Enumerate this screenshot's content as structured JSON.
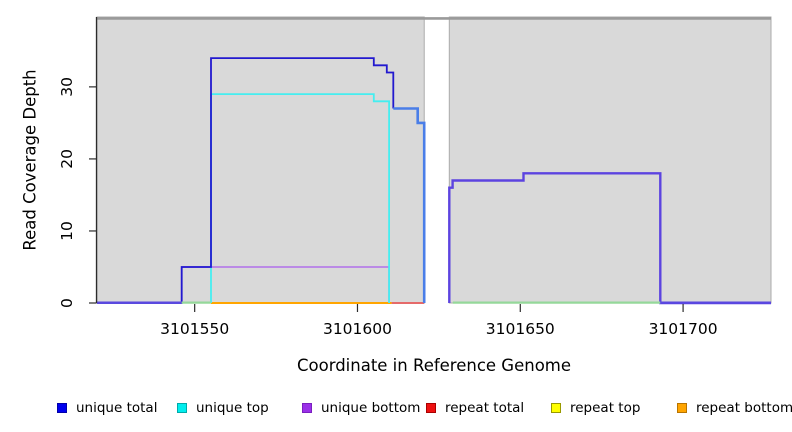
{
  "figure": {
    "xlabel": "Coordinate in Reference Genome",
    "ylabel": "Read Coverage Depth"
  },
  "chart_data": {
    "type": "line",
    "title": "",
    "xlabel": "Coordinate in Reference Genome",
    "ylabel": "Read Coverage Depth",
    "xlim": [
      3101520,
      3101727
    ],
    "ylim": [
      0,
      39.7
    ],
    "grid": false,
    "legend_position": "bottom",
    "x_ticks": [
      {
        "value": 3101550,
        "label": "3101550"
      },
      {
        "value": 3101600,
        "label": "3101600"
      },
      {
        "value": 3101650,
        "label": "3101650"
      },
      {
        "value": 3101700,
        "label": "3101700"
      }
    ],
    "y_ticks": [
      {
        "value": 0,
        "label": "0"
      },
      {
        "value": 10,
        "label": "10"
      },
      {
        "value": 20,
        "label": "20"
      },
      {
        "value": 30,
        "label": "30"
      }
    ],
    "plot_background": "#d9d9d9",
    "plot_border": "#ababab",
    "top_band_color": "#9a9a9a",
    "axis_color": "#2b2b2b",
    "gap_region": {
      "x0": 3101620.5,
      "x1": 3101628.2
    },
    "series": [
      {
        "name": "unique total",
        "legend_color": "#0000EE",
        "legend_border": "#0000AA",
        "segments": [
          {
            "color": "#2219cf",
            "width": 1.8,
            "points": [
              [
                3101520,
                0
              ],
              [
                3101546,
                0
              ],
              [
                3101546,
                5
              ],
              [
                3101555,
                5
              ],
              [
                3101555,
                34
              ],
              [
                3101605,
                34
              ],
              [
                3101605,
                33
              ],
              [
                3101609,
                33
              ],
              [
                3101609,
                32
              ],
              [
                3101611,
                32
              ],
              [
                3101611,
                27
              ]
            ]
          },
          {
            "color": "#4a7ee8",
            "width": 2.6,
            "points": [
              [
                3101611,
                27
              ],
              [
                3101618.5,
                27
              ],
              [
                3101618.5,
                25
              ],
              [
                3101620.5,
                25
              ],
              [
                3101620.5,
                0
              ]
            ]
          },
          {
            "color": "#5c43e0",
            "width": 2.4,
            "points": [
              [
                3101628.2,
                0
              ],
              [
                3101628.2,
                16
              ],
              [
                3101629.2,
                16
              ],
              [
                3101629.2,
                17
              ],
              [
                3101651,
                17
              ],
              [
                3101651,
                18
              ],
              [
                3101693,
                18
              ],
              [
                3101693,
                0
              ],
              [
                3101727,
                0
              ]
            ]
          }
        ]
      },
      {
        "name": "unique top",
        "legend_color": "#00EEEE",
        "legend_border": "#00AAAA",
        "segments": [
          {
            "color": "#45eef0",
            "width": 1.8,
            "points": [
              [
                3101555,
                0
              ],
              [
                3101555,
                29
              ],
              [
                3101605,
                29
              ],
              [
                3101605,
                28
              ],
              [
                3101609.7,
                28
              ],
              [
                3101609.7,
                0
              ]
            ]
          }
        ]
      },
      {
        "name": "unique bottom",
        "legend_color": "#9A30E8",
        "legend_border": "#7A1FC0",
        "segments": [
          {
            "color": "#b77fe8",
            "width": 1.7,
            "points": [
              [
                3101546,
                0
              ],
              [
                3101546,
                5
              ],
              [
                3101609.7,
                5
              ],
              [
                3101609.7,
                0
              ]
            ]
          }
        ]
      },
      {
        "name": "repeat total",
        "legend_color": "#EE1111",
        "legend_border": "#AA0000",
        "segments": [
          {
            "color": "#e56a6a",
            "width": 2.0,
            "points": [
              [
                3101610.5,
                0
              ],
              [
                3101620.5,
                0
              ]
            ]
          }
        ]
      },
      {
        "name": "repeat top",
        "legend_color": "#FFFF00",
        "legend_border": "#999900",
        "segments": []
      },
      {
        "name": "repeat bottom",
        "legend_color": "#FFA500",
        "legend_border": "#B87400",
        "segments": [
          {
            "color": "#FFA500",
            "width": 2.0,
            "points": [
              [
                3101555,
                0
              ],
              [
                3101610.5,
                0
              ]
            ]
          }
        ]
      }
    ],
    "zero_overlap_segments": [
      {
        "x0": 3101520,
        "x1": 3101546,
        "color": "#5a48e0"
      },
      {
        "x0": 3101546,
        "x1": 3101555,
        "color": "#95d89a"
      },
      {
        "x0": 3101629.3,
        "x1": 3101693,
        "color": "#95d89a"
      },
      {
        "x0": 3101693,
        "x1": 3101727,
        "color": "#5a48e0"
      }
    ]
  },
  "legend": {
    "items": [
      {
        "label": "unique total",
        "color": "#0000EE",
        "border": "#0000AA"
      },
      {
        "label": "unique top",
        "color": "#00EEEE",
        "border": "#00AAAA"
      },
      {
        "label": "unique bottom",
        "color": "#9A30E8",
        "border": "#7A1FC0"
      },
      {
        "label": "repeat total",
        "color": "#EE1111",
        "border": "#AA0000"
      },
      {
        "label": "repeat top",
        "color": "#FFFF00",
        "border": "#999900"
      },
      {
        "label": "repeat bottom",
        "color": "#FFA500",
        "border": "#B87400"
      }
    ]
  }
}
